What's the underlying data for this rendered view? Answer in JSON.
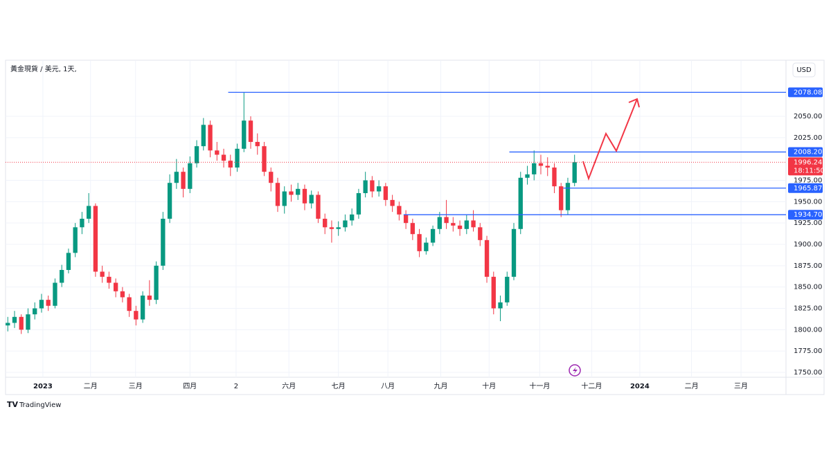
{
  "chart_data": {
    "type": "candlestick",
    "title": "黃金現貨 / 美元, 1天,",
    "currency": "USD",
    "brand": "TradingView",
    "up_color": "#089981",
    "down_color": "#f23645",
    "grid": true,
    "xlim": [
      0,
      347
    ],
    "ylim": [
      1744.3,
      2114.9
    ],
    "xticks": [
      {
        "value": 16.6,
        "label": "2023"
      },
      {
        "value": 37.8,
        "label": "二月"
      },
      {
        "value": 57.8,
        "label": "三月"
      },
      {
        "value": 82,
        "label": "四月"
      },
      {
        "value": 102.5,
        "label": "2"
      },
      {
        "value": 126,
        "label": "六月"
      },
      {
        "value": 148,
        "label": "七月"
      },
      {
        "value": 170,
        "label": "八月"
      },
      {
        "value": 193.5,
        "label": "九月"
      },
      {
        "value": 215,
        "label": "十月"
      },
      {
        "value": 237.5,
        "label": "十一月"
      },
      {
        "value": 260.6,
        "label": "十二月"
      },
      {
        "value": 282,
        "label": "2024"
      },
      {
        "value": 305,
        "label": "二月"
      },
      {
        "value": 327,
        "label": "三月"
      }
    ],
    "yticks": [
      {
        "value": 2050,
        "label": "2050.00"
      },
      {
        "value": 2025,
        "label": "2025.00"
      },
      {
        "value": 1975,
        "label": "1975.00"
      },
      {
        "value": 1950,
        "label": "1950.00"
      },
      {
        "value": 1925,
        "label": "1925.00"
      },
      {
        "value": 1900,
        "label": "1900.00"
      },
      {
        "value": 1875,
        "label": "1875.00"
      },
      {
        "value": 1850,
        "label": "1850.00"
      },
      {
        "value": 1825,
        "label": "1825.00"
      },
      {
        "value": 1800,
        "label": "1800.00"
      },
      {
        "value": 1775,
        "label": "1775.00"
      },
      {
        "value": 1750,
        "label": "1750.00"
      }
    ],
    "x": [
      1,
      4,
      7,
      10,
      13,
      16,
      19,
      22,
      25,
      28,
      31,
      34,
      37,
      40,
      43,
      46,
      49,
      52,
      55,
      58,
      61,
      64,
      67,
      70,
      73,
      76,
      79,
      82,
      85,
      88,
      91,
      94,
      97,
      100,
      103,
      106,
      109,
      112,
      115,
      118,
      121,
      124,
      127,
      130,
      133,
      136,
      139,
      142,
      145,
      148,
      151,
      154,
      157,
      160,
      163,
      166,
      169,
      172,
      175,
      178,
      181,
      184,
      187,
      190,
      193,
      196,
      199,
      202,
      205,
      208,
      211,
      214,
      217,
      220,
      223,
      226,
      229,
      232,
      235,
      238,
      241,
      244,
      247,
      250,
      253
    ],
    "candles": [
      [
        1805,
        1815,
        1798,
        1808
      ],
      [
        1808,
        1822,
        1802,
        1815
      ],
      [
        1815,
        1818,
        1795,
        1800
      ],
      [
        1800,
        1825,
        1796,
        1818
      ],
      [
        1818,
        1832,
        1812,
        1825
      ],
      [
        1825,
        1842,
        1820,
        1835
      ],
      [
        1835,
        1840,
        1822,
        1828
      ],
      [
        1828,
        1860,
        1825,
        1855
      ],
      [
        1855,
        1876,
        1850,
        1870
      ],
      [
        1870,
        1895,
        1866,
        1890
      ],
      [
        1890,
        1925,
        1885,
        1920
      ],
      [
        1920,
        1938,
        1912,
        1930
      ],
      [
        1930,
        1960,
        1925,
        1945
      ],
      [
        1945,
        1948,
        1862,
        1868
      ],
      [
        1868,
        1875,
        1855,
        1862
      ],
      [
        1862,
        1868,
        1848,
        1855
      ],
      [
        1855,
        1860,
        1838,
        1845
      ],
      [
        1845,
        1850,
        1832,
        1838
      ],
      [
        1838,
        1842,
        1815,
        1822
      ],
      [
        1822,
        1828,
        1805,
        1812
      ],
      [
        1812,
        1845,
        1808,
        1840
      ],
      [
        1840,
        1858,
        1828,
        1835
      ],
      [
        1835,
        1880,
        1830,
        1875
      ],
      [
        1875,
        1938,
        1870,
        1930
      ],
      [
        1930,
        1982,
        1925,
        1972
      ],
      [
        1972,
        2000,
        1965,
        1985
      ],
      [
        1985,
        1990,
        1955,
        1965
      ],
      [
        1965,
        2003,
        1960,
        1995
      ],
      [
        1995,
        2022,
        1990,
        2015
      ],
      [
        2015,
        2048,
        2010,
        2040
      ],
      [
        2040,
        2045,
        2002,
        2010
      ],
      [
        2010,
        2020,
        1998,
        2005
      ],
      [
        2005,
        2012,
        1990,
        1998
      ],
      [
        1998,
        2005,
        1980,
        1990
      ],
      [
        1990,
        2018,
        1985,
        2012
      ],
      [
        2012,
        2078,
        2008,
        2045
      ],
      [
        2045,
        2050,
        2012,
        2020
      ],
      [
        2020,
        2030,
        2005,
        2015
      ],
      [
        2015,
        2020,
        1980,
        1985
      ],
      [
        1985,
        1990,
        1962,
        1972
      ],
      [
        1972,
        1978,
        1938,
        1945
      ],
      [
        1945,
        1968,
        1936,
        1962
      ],
      [
        1962,
        1970,
        1950,
        1958
      ],
      [
        1958,
        1972,
        1952,
        1965
      ],
      [
        1965,
        1970,
        1940,
        1948
      ],
      [
        1948,
        1963,
        1942,
        1958
      ],
      [
        1958,
        1962,
        1925,
        1930
      ],
      [
        1930,
        1936,
        1912,
        1920
      ],
      [
        1920,
        1928,
        1902,
        1918
      ],
      [
        1918,
        1927,
        1910,
        1920
      ],
      [
        1920,
        1935,
        1915,
        1928
      ],
      [
        1928,
        1942,
        1922,
        1935
      ],
      [
        1935,
        1965,
        1930,
        1960
      ],
      [
        1960,
        1985,
        1955,
        1975
      ],
      [
        1975,
        1980,
        1955,
        1962
      ],
      [
        1962,
        1975,
        1956,
        1968
      ],
      [
        1968,
        1972,
        1945,
        1952
      ],
      [
        1952,
        1958,
        1938,
        1945
      ],
      [
        1945,
        1950,
        1928,
        1935
      ],
      [
        1935,
        1940,
        1918,
        1925
      ],
      [
        1925,
        1930,
        1905,
        1912
      ],
      [
        1912,
        1918,
        1885,
        1892
      ],
      [
        1892,
        1908,
        1888,
        1902
      ],
      [
        1902,
        1922,
        1898,
        1918
      ],
      [
        1918,
        1938,
        1912,
        1932
      ],
      [
        1932,
        1952,
        1918,
        1925
      ],
      [
        1925,
        1932,
        1915,
        1922
      ],
      [
        1922,
        1928,
        1910,
        1918
      ],
      [
        1918,
        1935,
        1912,
        1928
      ],
      [
        1928,
        1940,
        1915,
        1920
      ],
      [
        1920,
        1925,
        1898,
        1905
      ],
      [
        1905,
        1910,
        1855,
        1862
      ],
      [
        1862,
        1868,
        1818,
        1825
      ],
      [
        1825,
        1840,
        1810,
        1832
      ],
      [
        1832,
        1868,
        1828,
        1862
      ],
      [
        1862,
        1925,
        1858,
        1918
      ],
      [
        1918,
        1985,
        1912,
        1978
      ],
      [
        1978,
        1992,
        1970,
        1982
      ],
      [
        1982,
        2010,
        1975,
        1995
      ],
      [
        1995,
        2005,
        1982,
        1992
      ],
      [
        1992,
        2002,
        1980,
        1990
      ],
      [
        1990,
        1995,
        1960,
        1968
      ],
      [
        1968,
        1972,
        1932,
        1940
      ],
      [
        1940,
        1978,
        1935,
        1972
      ],
      [
        1972,
        2005,
        1968,
        1996.24
      ]
    ],
    "levels": [
      {
        "value": 2078.08,
        "x_start": 99
      },
      {
        "value": 2008.2,
        "label": "2008.20",
        "x_start": 224
      },
      {
        "value": 1965.87,
        "x_start": 248
      },
      {
        "value": 1934.7,
        "label": "1934.70",
        "x_start": 177
      }
    ],
    "level_color": "#2962ff",
    "last_price": 1996.24,
    "countdown": "18:11:50"
  }
}
